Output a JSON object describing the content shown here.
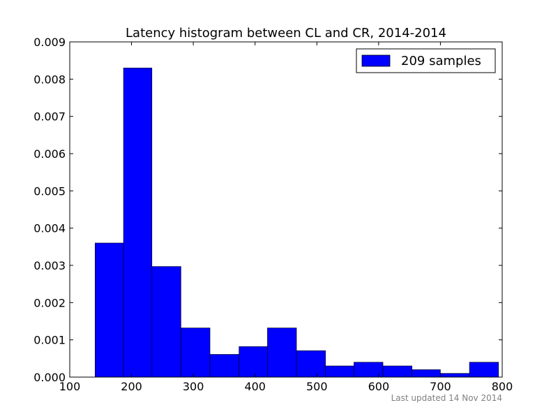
{
  "chart_data": {
    "type": "bar",
    "title": "Latency histogram between CL and CR, 2014-2014",
    "xlabel": "",
    "ylabel": "",
    "xlim": [
      100,
      800
    ],
    "ylim": [
      0,
      0.009
    ],
    "x_ticks": [
      100,
      200,
      300,
      400,
      500,
      600,
      700,
      800
    ],
    "y_ticks": [
      0.0,
      0.001,
      0.002,
      0.003,
      0.004,
      0.005,
      0.006,
      0.007,
      0.008,
      0.009
    ],
    "y_tick_labels": [
      "0.000",
      "0.001",
      "0.002",
      "0.003",
      "0.004",
      "0.005",
      "0.006",
      "0.007",
      "0.008",
      "0.009"
    ],
    "grid": false,
    "legend": {
      "position": "top-right",
      "entries": [
        "209 samples"
      ]
    },
    "series": [
      {
        "name": "209 samples",
        "color": "#0000ff",
        "bins": [
          {
            "x0": 141,
            "x1": 187,
            "value": 0.0036
          },
          {
            "x0": 187,
            "x1": 233,
            "value": 0.0083
          },
          {
            "x0": 233,
            "x1": 280,
            "value": 0.00297
          },
          {
            "x0": 280,
            "x1": 327,
            "value": 0.00132
          },
          {
            "x0": 327,
            "x1": 374,
            "value": 0.00061
          },
          {
            "x0": 374,
            "x1": 420,
            "value": 0.00082
          },
          {
            "x0": 420,
            "x1": 467,
            "value": 0.00132
          },
          {
            "x0": 467,
            "x1": 514,
            "value": 0.00071
          },
          {
            "x0": 514,
            "x1": 560,
            "value": 0.0003
          },
          {
            "x0": 560,
            "x1": 607,
            "value": 0.0004
          },
          {
            "x0": 607,
            "x1": 654,
            "value": 0.0003
          },
          {
            "x0": 654,
            "x1": 700,
            "value": 0.0002
          },
          {
            "x0": 700,
            "x1": 747,
            "value": 0.0001
          },
          {
            "x0": 747,
            "x1": 794,
            "value": 0.0004
          }
        ]
      }
    ],
    "annotation": "Last updated 14 Nov 2014"
  }
}
